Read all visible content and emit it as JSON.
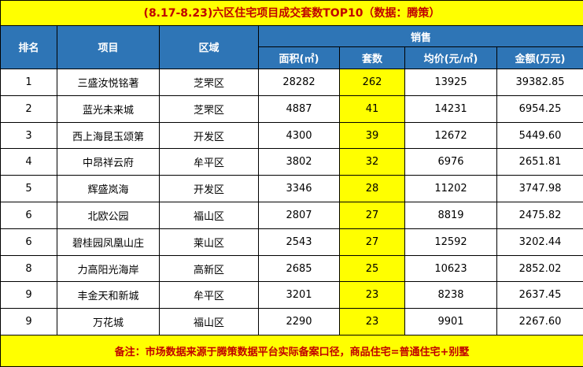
{
  "title": "(8.17-8.23)六区住宅项目成交套数TOP10（数据：腾策）",
  "headers": {
    "rank": "排名",
    "project": "项目",
    "district": "区域",
    "sales": "销售",
    "area": "面积(㎡)",
    "units": "套数",
    "avg_price": "均价(元/㎡)",
    "amount": "金额(万元)"
  },
  "rows": [
    {
      "rank": "1",
      "project": "三盛汝悦铭著",
      "district": "芝罘区",
      "area": "28282",
      "units": "262",
      "avg_price": "13925",
      "amount": "39382.85"
    },
    {
      "rank": "2",
      "project": "蓝光未来城",
      "district": "芝罘区",
      "area": "4887",
      "units": "41",
      "avg_price": "14231",
      "amount": "6954.25"
    },
    {
      "rank": "3",
      "project": "西上海昆玉颂第",
      "district": "开发区",
      "area": "4300",
      "units": "39",
      "avg_price": "12672",
      "amount": "5449.60"
    },
    {
      "rank": "4",
      "project": "中昂祥云府",
      "district": "牟平区",
      "area": "3802",
      "units": "32",
      "avg_price": "6976",
      "amount": "2651.81"
    },
    {
      "rank": "5",
      "project": "辉盛岚海",
      "district": "开发区",
      "area": "3346",
      "units": "28",
      "avg_price": "11202",
      "amount": "3747.98"
    },
    {
      "rank": "6",
      "project": "北欧公园",
      "district": "福山区",
      "area": "2807",
      "units": "27",
      "avg_price": "8819",
      "amount": "2475.82"
    },
    {
      "rank": "6",
      "project": "碧桂园凤凰山庄",
      "district": "莱山区",
      "area": "2543",
      "units": "27",
      "avg_price": "12592",
      "amount": "3202.44"
    },
    {
      "rank": "8",
      "project": "力高阳光海岸",
      "district": "高新区",
      "area": "2685",
      "units": "25",
      "avg_price": "10623",
      "amount": "2852.02"
    },
    {
      "rank": "9",
      "project": "丰金天和新城",
      "district": "牟平区",
      "area": "3201",
      "units": "23",
      "avg_price": "8238",
      "amount": "2637.45"
    },
    {
      "rank": "9",
      "project": "万花城",
      "district": "福山区",
      "area": "2290",
      "units": "23",
      "avg_price": "9901",
      "amount": "2267.60"
    }
  ],
  "note": "备注：市场数据来源于腾策数据平台实际备案口径，商品住宅=普通住宅+别墅",
  "colors": {
    "header_bg": "#2e75b6",
    "highlight": "#ffff00",
    "accent_text": "#c00000"
  }
}
